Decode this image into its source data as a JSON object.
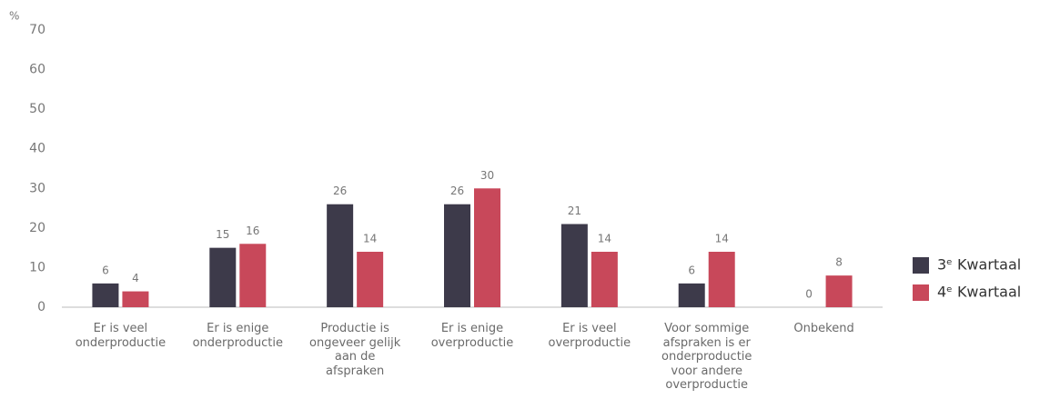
{
  "chart_data": {
    "type": "bar",
    "y_unit": "%",
    "categories": [
      "Er is veel\nonderproductie",
      "Er is enige\nonderproductie",
      "Productie is\nongeveer gelijk\naan de\nafspraken",
      "Er is enige\noverproductie",
      "Er is veel\noverproductie",
      "Voor sommige\nafspraken is er\nonderproductie\nvoor andere\noverproductie",
      "Onbekend"
    ],
    "series": [
      {
        "name": "3ᵉ Kwartaal",
        "color": "#3d3a4a",
        "values": [
          6,
          15,
          26,
          26,
          21,
          6,
          0
        ]
      },
      {
        "name": "4ᵉ Kwartaal",
        "color": "#c8485a",
        "values": [
          4,
          16,
          14,
          30,
          14,
          14,
          8
        ]
      }
    ],
    "ylim": [
      0,
      70
    ],
    "yticks": [
      0,
      10,
      20,
      30,
      40,
      50,
      60,
      70
    ],
    "grid": false,
    "legend": "right"
  }
}
